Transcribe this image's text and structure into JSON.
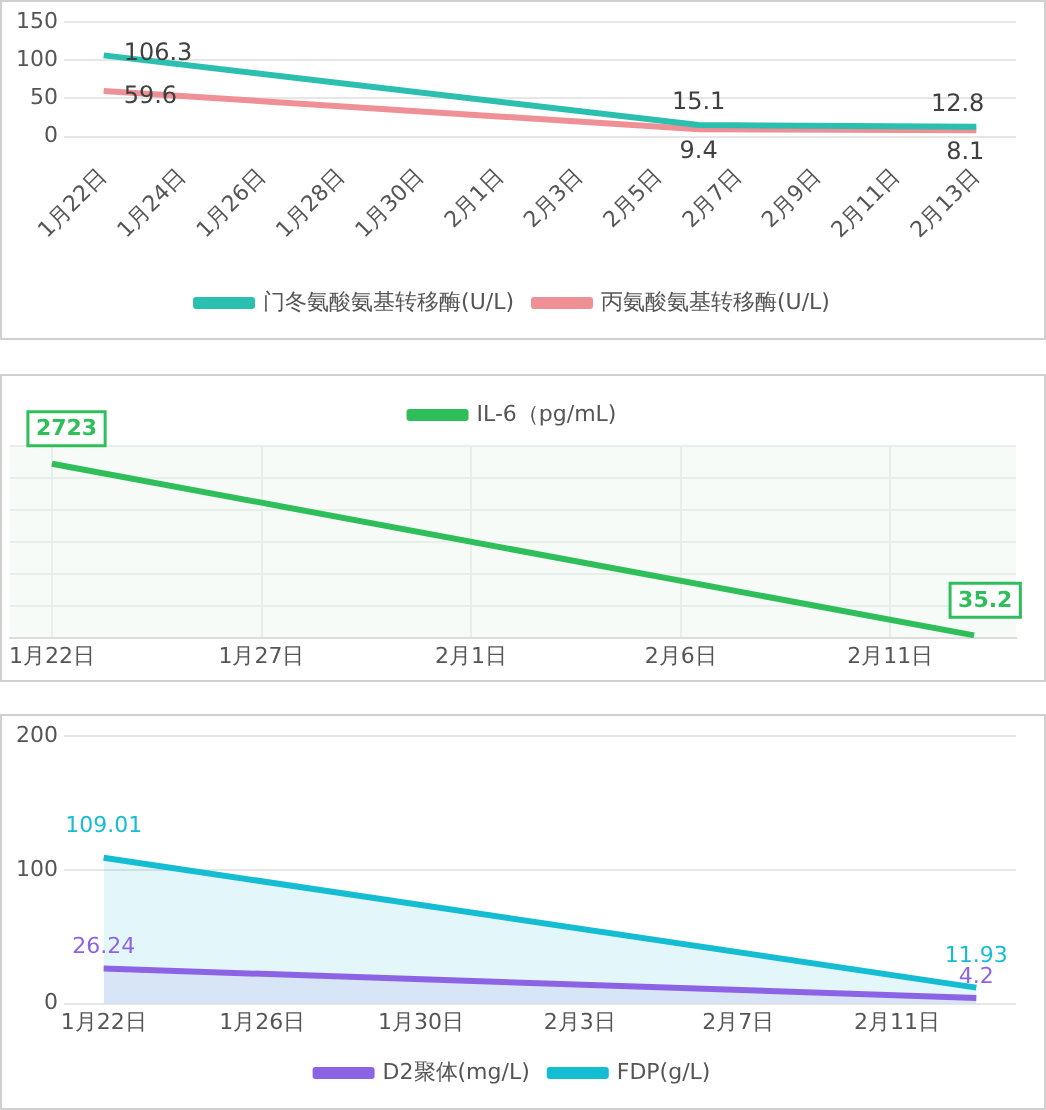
{
  "chart_data": [
    {
      "type": "line",
      "x": [
        "--01-22",
        "--02-06",
        "--02-13"
      ],
      "series": [
        {
          "name": "门冬氨酸氨基转移酶(U/L)",
          "color": "#2bbfb0",
          "values": [
            106.3,
            15.1,
            12.8
          ]
        },
        {
          "name": "丙氨酸氨基转移酶(U/L)",
          "color": "#ef8f96",
          "values": [
            59.6,
            9.4,
            8.1
          ]
        }
      ],
      "xlim": [
        "--01-21",
        "--02-14"
      ],
      "xticks": [
        {
          "value": "--01-22",
          "label": "1月22日"
        },
        {
          "value": "--01-24",
          "label": "1月24日"
        },
        {
          "value": "--01-26",
          "label": "1月26日"
        },
        {
          "value": "--01-28",
          "label": "1月28日"
        },
        {
          "value": "--01-30",
          "label": "1月30日"
        },
        {
          "value": "--02-01",
          "label": "2月1日"
        },
        {
          "value": "--02-03",
          "label": "2月3日"
        },
        {
          "value": "--02-05",
          "label": "2月5日"
        },
        {
          "value": "--02-07",
          "label": "2月7日"
        },
        {
          "value": "--02-09",
          "label": "2月9日"
        },
        {
          "value": "--02-11",
          "label": "2月11日"
        },
        {
          "value": "--02-13",
          "label": "2月13日"
        }
      ],
      "ylim": [
        0,
        150
      ],
      "yticks": [
        0,
        50,
        100,
        150
      ],
      "grid": "y",
      "legend": "bottom",
      "data_labels": true,
      "marker": "none"
    },
    {
      "type": "line",
      "x": [
        "--01-22",
        "--02-13"
      ],
      "series": [
        {
          "name": "IL-6（pg/mL)",
          "color": "#2fbf5a",
          "values": [
            2723,
            35.2
          ]
        }
      ],
      "xlim": [
        "--01-21",
        "--02-14"
      ],
      "xticks": [
        {
          "value": "--01-22",
          "label": "1月22日"
        },
        {
          "value": "--01-27",
          "label": "1月27日"
        },
        {
          "value": "--02-01",
          "label": "2月1日"
        },
        {
          "value": "--02-06",
          "label": "2月6日"
        },
        {
          "value": "--02-11",
          "label": "2月11日"
        }
      ],
      "tick_labels": "x",
      "grid": true,
      "legend": "top",
      "data_labels": true,
      "marker": "none"
    },
    {
      "type": "area",
      "x": [
        "--01-22",
        "--02-13"
      ],
      "series": [
        {
          "name": "D2聚体(mg/L)",
          "color": "#8d63e6",
          "values": [
            26.24,
            4.2
          ]
        },
        {
          "name": "FDP(g/L)",
          "color": "#15bdd3",
          "values": [
            109.01,
            11.93
          ]
        }
      ],
      "xlim": [
        "--01-21",
        "--02-14"
      ],
      "xticks": [
        {
          "value": "--01-22",
          "label": "1月22日"
        },
        {
          "value": "--01-26",
          "label": "1月26日"
        },
        {
          "value": "--01-30",
          "label": "1月30日"
        },
        {
          "value": "--02-03",
          "label": "2月3日"
        },
        {
          "value": "--02-07",
          "label": "2月7日"
        },
        {
          "value": "--02-11",
          "label": "2月11日"
        }
      ],
      "ylim": [
        0,
        200
      ],
      "yticks": [
        0,
        100,
        200
      ],
      "grid": "y",
      "legend": "bottom",
      "data_labels": true,
      "marker": "none"
    }
  ]
}
